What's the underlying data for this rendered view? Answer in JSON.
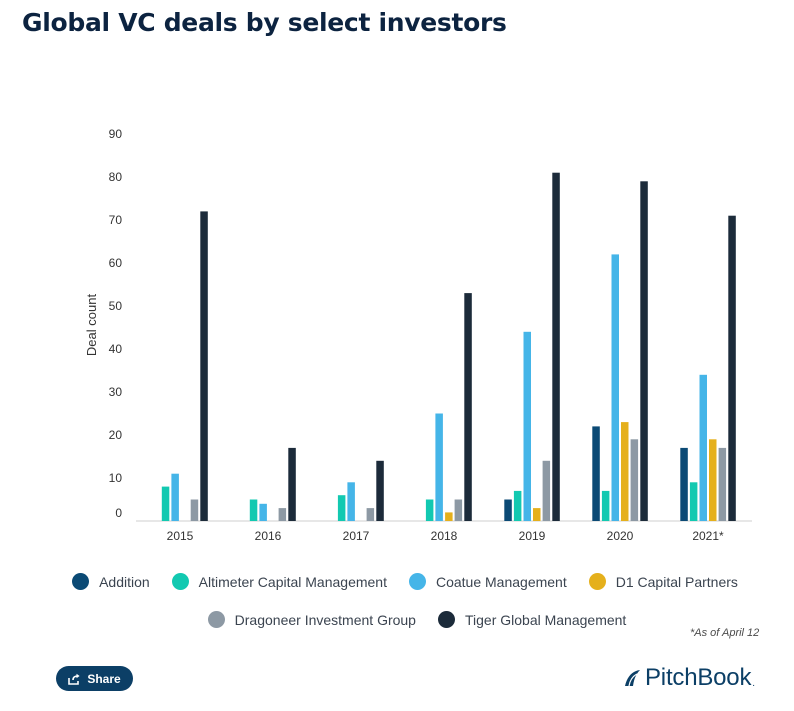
{
  "title": "Global VC deals by select investors",
  "chart_data": {
    "type": "bar",
    "title": "Global VC deals by select investors",
    "xlabel": "",
    "ylabel": "Deal count",
    "ylim": [
      0,
      90
    ],
    "yticks": [
      0,
      10,
      20,
      30,
      40,
      50,
      60,
      70,
      80,
      90
    ],
    "categories": [
      "2015",
      "2016",
      "2017",
      "2018",
      "2019",
      "2020",
      "2021*"
    ],
    "series": [
      {
        "name": "Addition",
        "color": "#0b4a75",
        "values": [
          0,
          0,
          0,
          0,
          5,
          22,
          17
        ]
      },
      {
        "name": "Altimeter Capital Management",
        "color": "#12c9b1",
        "values": [
          8,
          5,
          6,
          5,
          7,
          7,
          9
        ]
      },
      {
        "name": "Coatue Management",
        "color": "#45b5e8",
        "values": [
          11,
          4,
          9,
          25,
          44,
          62,
          34
        ]
      },
      {
        "name": "D1 Capital Partners",
        "color": "#e5b01c",
        "values": [
          0,
          0,
          0,
          2,
          3,
          23,
          19
        ]
      },
      {
        "name": "Dragoneer Investment Group",
        "color": "#8d99a4",
        "values": [
          5,
          3,
          3,
          5,
          14,
          19,
          17
        ]
      },
      {
        "name": "Tiger Global Management",
        "color": "#1c2b3a",
        "values": [
          72,
          17,
          14,
          53,
          81,
          79,
          71
        ]
      }
    ],
    "legend_position": "bottom",
    "grid": false
  },
  "footnote": "*As of April 12",
  "share_label": "Share",
  "brand": "PitchBook",
  "brand_mark": "."
}
